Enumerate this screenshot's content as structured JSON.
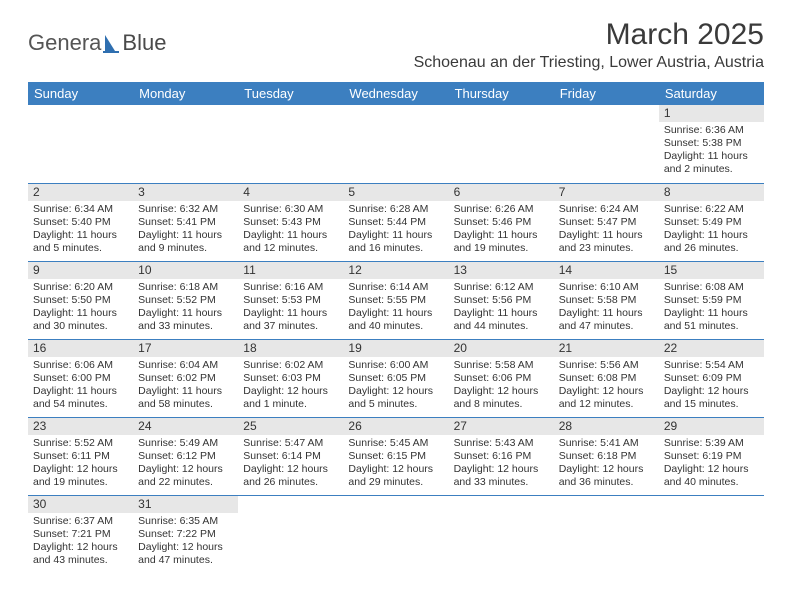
{
  "logo": {
    "part1": "Genera",
    "part2": "Blue"
  },
  "title": "March 2025",
  "location": "Schoenau an der Triesting, Lower Austria, Austria",
  "colors": {
    "header_bg": "#3c7fc0",
    "header_text": "#ffffff",
    "daynum_bg": "#e7e7e7",
    "border": "#3c7fc0",
    "text": "#333333",
    "logo_accent": "#2f6fb0"
  },
  "day_headers": [
    "Sunday",
    "Monday",
    "Tuesday",
    "Wednesday",
    "Thursday",
    "Friday",
    "Saturday"
  ],
  "weeks": [
    [
      {
        "n": "",
        "sr": "",
        "ss": "",
        "dl": ""
      },
      {
        "n": "",
        "sr": "",
        "ss": "",
        "dl": ""
      },
      {
        "n": "",
        "sr": "",
        "ss": "",
        "dl": ""
      },
      {
        "n": "",
        "sr": "",
        "ss": "",
        "dl": ""
      },
      {
        "n": "",
        "sr": "",
        "ss": "",
        "dl": ""
      },
      {
        "n": "",
        "sr": "",
        "ss": "",
        "dl": ""
      },
      {
        "n": "1",
        "sr": "Sunrise: 6:36 AM",
        "ss": "Sunset: 5:38 PM",
        "dl": "Daylight: 11 hours and 2 minutes."
      }
    ],
    [
      {
        "n": "2",
        "sr": "Sunrise: 6:34 AM",
        "ss": "Sunset: 5:40 PM",
        "dl": "Daylight: 11 hours and 5 minutes."
      },
      {
        "n": "3",
        "sr": "Sunrise: 6:32 AM",
        "ss": "Sunset: 5:41 PM",
        "dl": "Daylight: 11 hours and 9 minutes."
      },
      {
        "n": "4",
        "sr": "Sunrise: 6:30 AM",
        "ss": "Sunset: 5:43 PM",
        "dl": "Daylight: 11 hours and 12 minutes."
      },
      {
        "n": "5",
        "sr": "Sunrise: 6:28 AM",
        "ss": "Sunset: 5:44 PM",
        "dl": "Daylight: 11 hours and 16 minutes."
      },
      {
        "n": "6",
        "sr": "Sunrise: 6:26 AM",
        "ss": "Sunset: 5:46 PM",
        "dl": "Daylight: 11 hours and 19 minutes."
      },
      {
        "n": "7",
        "sr": "Sunrise: 6:24 AM",
        "ss": "Sunset: 5:47 PM",
        "dl": "Daylight: 11 hours and 23 minutes."
      },
      {
        "n": "8",
        "sr": "Sunrise: 6:22 AM",
        "ss": "Sunset: 5:49 PM",
        "dl": "Daylight: 11 hours and 26 minutes."
      }
    ],
    [
      {
        "n": "9",
        "sr": "Sunrise: 6:20 AM",
        "ss": "Sunset: 5:50 PM",
        "dl": "Daylight: 11 hours and 30 minutes."
      },
      {
        "n": "10",
        "sr": "Sunrise: 6:18 AM",
        "ss": "Sunset: 5:52 PM",
        "dl": "Daylight: 11 hours and 33 minutes."
      },
      {
        "n": "11",
        "sr": "Sunrise: 6:16 AM",
        "ss": "Sunset: 5:53 PM",
        "dl": "Daylight: 11 hours and 37 minutes."
      },
      {
        "n": "12",
        "sr": "Sunrise: 6:14 AM",
        "ss": "Sunset: 5:55 PM",
        "dl": "Daylight: 11 hours and 40 minutes."
      },
      {
        "n": "13",
        "sr": "Sunrise: 6:12 AM",
        "ss": "Sunset: 5:56 PM",
        "dl": "Daylight: 11 hours and 44 minutes."
      },
      {
        "n": "14",
        "sr": "Sunrise: 6:10 AM",
        "ss": "Sunset: 5:58 PM",
        "dl": "Daylight: 11 hours and 47 minutes."
      },
      {
        "n": "15",
        "sr": "Sunrise: 6:08 AM",
        "ss": "Sunset: 5:59 PM",
        "dl": "Daylight: 11 hours and 51 minutes."
      }
    ],
    [
      {
        "n": "16",
        "sr": "Sunrise: 6:06 AM",
        "ss": "Sunset: 6:00 PM",
        "dl": "Daylight: 11 hours and 54 minutes."
      },
      {
        "n": "17",
        "sr": "Sunrise: 6:04 AM",
        "ss": "Sunset: 6:02 PM",
        "dl": "Daylight: 11 hours and 58 minutes."
      },
      {
        "n": "18",
        "sr": "Sunrise: 6:02 AM",
        "ss": "Sunset: 6:03 PM",
        "dl": "Daylight: 12 hours and 1 minute."
      },
      {
        "n": "19",
        "sr": "Sunrise: 6:00 AM",
        "ss": "Sunset: 6:05 PM",
        "dl": "Daylight: 12 hours and 5 minutes."
      },
      {
        "n": "20",
        "sr": "Sunrise: 5:58 AM",
        "ss": "Sunset: 6:06 PM",
        "dl": "Daylight: 12 hours and 8 minutes."
      },
      {
        "n": "21",
        "sr": "Sunrise: 5:56 AM",
        "ss": "Sunset: 6:08 PM",
        "dl": "Daylight: 12 hours and 12 minutes."
      },
      {
        "n": "22",
        "sr": "Sunrise: 5:54 AM",
        "ss": "Sunset: 6:09 PM",
        "dl": "Daylight: 12 hours and 15 minutes."
      }
    ],
    [
      {
        "n": "23",
        "sr": "Sunrise: 5:52 AM",
        "ss": "Sunset: 6:11 PM",
        "dl": "Daylight: 12 hours and 19 minutes."
      },
      {
        "n": "24",
        "sr": "Sunrise: 5:49 AM",
        "ss": "Sunset: 6:12 PM",
        "dl": "Daylight: 12 hours and 22 minutes."
      },
      {
        "n": "25",
        "sr": "Sunrise: 5:47 AM",
        "ss": "Sunset: 6:14 PM",
        "dl": "Daylight: 12 hours and 26 minutes."
      },
      {
        "n": "26",
        "sr": "Sunrise: 5:45 AM",
        "ss": "Sunset: 6:15 PM",
        "dl": "Daylight: 12 hours and 29 minutes."
      },
      {
        "n": "27",
        "sr": "Sunrise: 5:43 AM",
        "ss": "Sunset: 6:16 PM",
        "dl": "Daylight: 12 hours and 33 minutes."
      },
      {
        "n": "28",
        "sr": "Sunrise: 5:41 AM",
        "ss": "Sunset: 6:18 PM",
        "dl": "Daylight: 12 hours and 36 minutes."
      },
      {
        "n": "29",
        "sr": "Sunrise: 5:39 AM",
        "ss": "Sunset: 6:19 PM",
        "dl": "Daylight: 12 hours and 40 minutes."
      }
    ],
    [
      {
        "n": "30",
        "sr": "Sunrise: 6:37 AM",
        "ss": "Sunset: 7:21 PM",
        "dl": "Daylight: 12 hours and 43 minutes."
      },
      {
        "n": "31",
        "sr": "Sunrise: 6:35 AM",
        "ss": "Sunset: 7:22 PM",
        "dl": "Daylight: 12 hours and 47 minutes."
      },
      {
        "n": "",
        "sr": "",
        "ss": "",
        "dl": ""
      },
      {
        "n": "",
        "sr": "",
        "ss": "",
        "dl": ""
      },
      {
        "n": "",
        "sr": "",
        "ss": "",
        "dl": ""
      },
      {
        "n": "",
        "sr": "",
        "ss": "",
        "dl": ""
      },
      {
        "n": "",
        "sr": "",
        "ss": "",
        "dl": ""
      }
    ]
  ]
}
